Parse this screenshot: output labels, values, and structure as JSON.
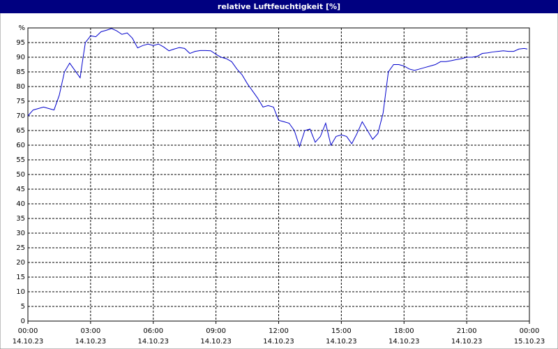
{
  "chart_data": {
    "type": "line",
    "title": "relative Luftfeuchtigkeit [%]",
    "x": [
      0,
      0.25,
      0.5,
      0.75,
      1,
      1.25,
      1.5,
      1.75,
      2,
      2.25,
      2.5,
      2.6,
      2.75,
      3,
      3.25,
      3.5,
      3.75,
      4,
      4.25,
      4.5,
      4.75,
      5,
      5.25,
      5.5,
      5.75,
      6,
      6.25,
      6.5,
      6.75,
      7,
      7.25,
      7.5,
      7.75,
      8,
      8.25,
      8.5,
      8.75,
      9,
      9.25,
      9.5,
      9.75,
      10,
      10.25,
      10.5,
      10.75,
      11,
      11.25,
      11.5,
      11.75,
      12,
      12.25,
      12.5,
      12.75,
      13,
      13.25,
      13.5,
      13.75,
      14,
      14.25,
      14.5,
      14.75,
      15,
      15.25,
      15.5,
      15.75,
      16,
      16.25,
      16.5,
      16.75,
      17,
      17.25,
      17.5,
      17.75,
      18,
      18.25,
      18.5,
      18.75,
      19,
      19.25,
      19.5,
      19.75,
      20,
      20.25,
      20.5,
      20.75,
      21,
      21.25,
      21.5,
      21.75,
      22,
      22.25,
      22.5,
      22.75,
      23,
      23.25,
      23.5,
      23.75,
      23.9
    ],
    "series": [
      {
        "name": "relative Luftfeuchtigkeit",
        "color": "#0000cc",
        "values": [
          70,
          72,
          72.5,
          73,
          72.5,
          72,
          77,
          85,
          88,
          85.5,
          83,
          88,
          95,
          97.3,
          97,
          98.7,
          99.2,
          99.8,
          99,
          97.8,
          98.3,
          96.5,
          93.2,
          94,
          94.5,
          94,
          94.5,
          93.5,
          92.2,
          92.8,
          93.3,
          93,
          91.3,
          92,
          92.3,
          92.3,
          92.2,
          91,
          90,
          89.5,
          88.5,
          86,
          84,
          81,
          78.5,
          76,
          73,
          73.5,
          73,
          68.5,
          68,
          67.5,
          65,
          59.5,
          65,
          65.5,
          61,
          63,
          67.5,
          60,
          63,
          63.5,
          63,
          60.5,
          64,
          68,
          65,
          62,
          64,
          71,
          85,
          87.5,
          87.5,
          87,
          86,
          85.5,
          86,
          86.5,
          87,
          87.5,
          88.5,
          88.5,
          88.8,
          89.2,
          89.5,
          90,
          90,
          90.3,
          91.3,
          91.5,
          91.8,
          92,
          92.2,
          92,
          92,
          92.8,
          93,
          92.8
        ]
      }
    ],
    "xlim": [
      0,
      24
    ],
    "xticks": [
      {
        "value": 0,
        "label": "00:00",
        "date": "14.10.23"
      },
      {
        "value": 3,
        "label": "03:00",
        "date": "14.10.23"
      },
      {
        "value": 6,
        "label": "06:00",
        "date": "14.10.23"
      },
      {
        "value": 9,
        "label": "09:00",
        "date": "14.10.23"
      },
      {
        "value": 12,
        "label": "12:00",
        "date": "14.10.23"
      },
      {
        "value": 15,
        "label": "15:00",
        "date": "14.10.23"
      },
      {
        "value": 18,
        "label": "18:00",
        "date": "14.10.23"
      },
      {
        "value": 21,
        "label": "21:00",
        "date": "14.10.23"
      },
      {
        "value": 24,
        "label": "00:00",
        "date": "15.10.23"
      }
    ],
    "ylim": [
      0,
      100
    ],
    "yticks": [
      0,
      5,
      10,
      15,
      20,
      25,
      30,
      35,
      40,
      45,
      50,
      55,
      60,
      65,
      70,
      75,
      80,
      85,
      90,
      95,
      {
        "value": 100,
        "label": "%"
      }
    ],
    "grid": true
  }
}
